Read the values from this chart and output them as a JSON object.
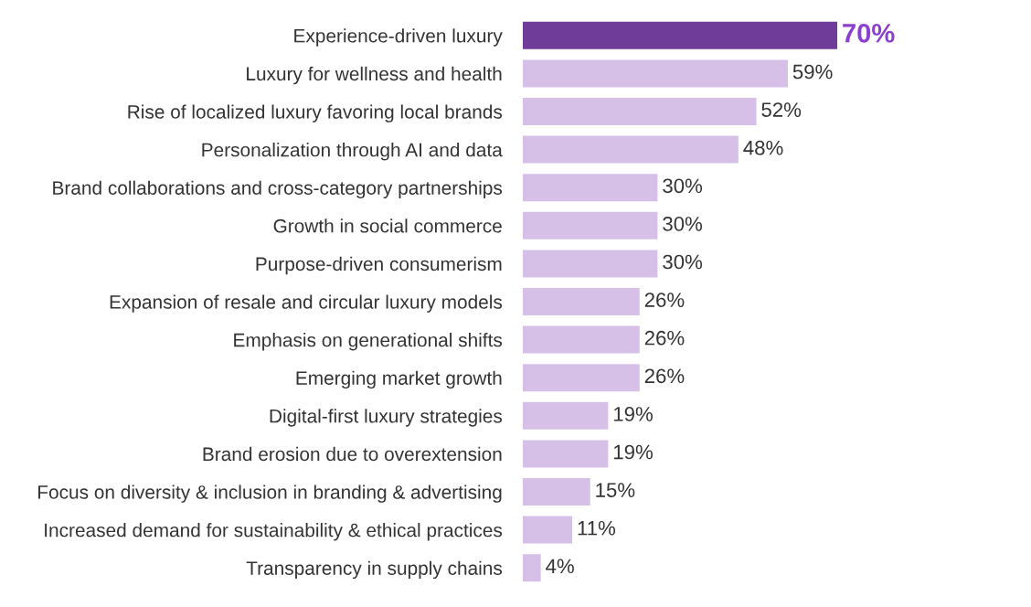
{
  "chart_data": {
    "type": "bar",
    "orientation": "horizontal",
    "categories": [
      "Experience-driven luxury",
      "Luxury for wellness and health",
      "Rise of localized luxury favoring local brands",
      "Personalization through AI and data",
      "Brand collaborations and cross-category partnerships",
      "Growth in social commerce",
      "Purpose-driven consumerism",
      "Expansion of resale and circular luxury models",
      "Emphasis on generational shifts",
      "Emerging market growth",
      "Digital-first luxury strategies",
      "Brand erosion due to overextension",
      "Focus on diversity & inclusion in branding & advertising",
      "Increased demand for sustainability & ethical practices",
      "Transparency in supply chains"
    ],
    "values": [
      70,
      59,
      52,
      48,
      30,
      30,
      30,
      26,
      26,
      26,
      19,
      19,
      15,
      11,
      4
    ],
    "colors": [
      "#6f3c99",
      "#d7c0e8",
      "#d7c0e8",
      "#d7c0e8",
      "#d7c0e8",
      "#d7c0e8",
      "#d7c0e8",
      "#d7c0e8",
      "#d7c0e8",
      "#d7c0e8",
      "#d7c0e8",
      "#d7c0e8",
      "#d7c0e8",
      "#d7c0e8",
      "#d7c0e8"
    ],
    "value_labels": [
      "70%",
      "59%",
      "52%",
      "48%",
      "30%",
      "30%",
      "30%",
      "26%",
      "26%",
      "26%",
      "19%",
      "19%",
      "15%",
      "11%",
      "4%"
    ]
  }
}
